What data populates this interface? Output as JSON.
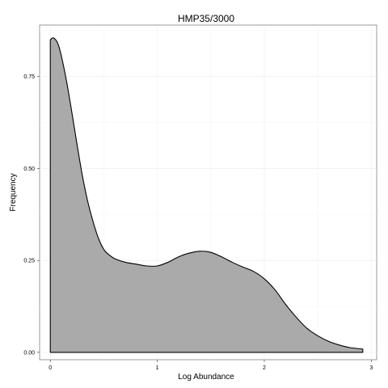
{
  "chart_data": {
    "type": "area",
    "title": "HMP35/3000",
    "xlabel": "Log Abundance",
    "ylabel": "Frequency",
    "xlim": [
      -0.1,
      3.05
    ],
    "ylim": [
      -0.02,
      0.89
    ],
    "x_ticks": [
      0,
      1,
      2,
      3
    ],
    "x_tick_labels": [
      "0",
      "1",
      "2",
      "3"
    ],
    "y_ticks": [
      0.0,
      0.25,
      0.5,
      0.75
    ],
    "y_tick_labels": [
      "0.00",
      "0.25",
      "0.50",
      "0.75"
    ],
    "grid": true,
    "legend": "none",
    "fill_color": "#aaaaaa",
    "line_color": "#000000",
    "series": [
      {
        "x": [
          0.0,
          0.03,
          0.07,
          0.1,
          0.15,
          0.2,
          0.25,
          0.3,
          0.35,
          0.4,
          0.45,
          0.5,
          0.55,
          0.6,
          0.7,
          0.8,
          0.9,
          1.0,
          1.1,
          1.2,
          1.3,
          1.4,
          1.5,
          1.6,
          1.7,
          1.8,
          1.9,
          2.0,
          2.1,
          2.2,
          2.3,
          2.4,
          2.5,
          2.6,
          2.7,
          2.8,
          2.92
        ],
        "values": [
          0.85,
          0.855,
          0.84,
          0.81,
          0.74,
          0.655,
          0.565,
          0.48,
          0.41,
          0.355,
          0.31,
          0.28,
          0.265,
          0.255,
          0.245,
          0.24,
          0.235,
          0.235,
          0.245,
          0.26,
          0.27,
          0.275,
          0.272,
          0.26,
          0.245,
          0.232,
          0.22,
          0.2,
          0.17,
          0.13,
          0.095,
          0.065,
          0.045,
          0.03,
          0.02,
          0.013,
          0.009
        ]
      }
    ]
  }
}
